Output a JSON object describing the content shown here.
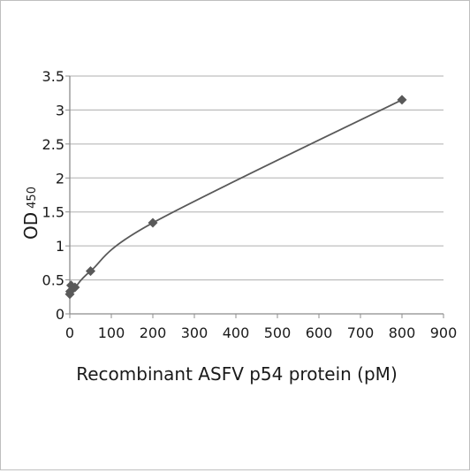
{
  "chart_data": {
    "type": "scatter",
    "title": "",
    "xlabel": "Recombinant ASFV p54 protein (pM)",
    "ylabel": {
      "main": "OD",
      "subscript": "450"
    },
    "xlim": [
      0,
      900
    ],
    "ylim": [
      0,
      3.5
    ],
    "xticks": [
      "0",
      "100",
      "200",
      "300",
      "400",
      "500",
      "600",
      "700",
      "800",
      "900"
    ],
    "yticks": [
      "0",
      "0.5",
      "1",
      "1.5",
      "2",
      "2.5",
      "3",
      "3.5"
    ],
    "grid": "horizontal",
    "series": [
      {
        "marker": "diamond",
        "color": "#595959",
        "x": [
          0,
          0.8,
          3.1,
          12.5,
          50,
          200,
          800
        ],
        "y": [
          0.29,
          0.33,
          0.42,
          0.39,
          0.63,
          1.34,
          3.15
        ]
      }
    ],
    "trendline": {
      "kind": "smooth-curve",
      "color": "#595959"
    }
  }
}
